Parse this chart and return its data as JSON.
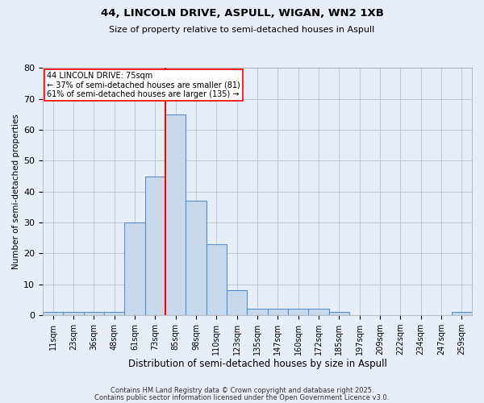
{
  "title1": "44, LINCOLN DRIVE, ASPULL, WIGAN, WN2 1XB",
  "title2": "Size of property relative to semi-detached houses in Aspull",
  "xlabel": "Distribution of semi-detached houses by size in Aspull",
  "ylabel": "Number of semi-detached properties",
  "bar_labels": [
    "11sqm",
    "23sqm",
    "36sqm",
    "48sqm",
    "61sqm",
    "73sqm",
    "85sqm",
    "98sqm",
    "110sqm",
    "123sqm",
    "135sqm",
    "147sqm",
    "160sqm",
    "172sqm",
    "185sqm",
    "197sqm",
    "209sqm",
    "222sqm",
    "234sqm",
    "247sqm",
    "259sqm"
  ],
  "bar_values": [
    1,
    1,
    1,
    1,
    30,
    45,
    65,
    37,
    23,
    8,
    2,
    2,
    2,
    2,
    1,
    0,
    0,
    0,
    0,
    0,
    1
  ],
  "bar_color": "#c9d9ec",
  "bar_edge_color": "#5b8fc9",
  "grid_color": "#c0c8d8",
  "background_color": "#e8eef8",
  "vline_idx": 6,
  "vline_color": "red",
  "annotation_title": "44 LINCOLN DRIVE: 75sqm",
  "annotation_line1": "← 37% of semi-detached houses are smaller (81)",
  "annotation_line2": "61% of semi-detached houses are larger (135) →",
  "annotation_box_color": "white",
  "annotation_box_edge": "red",
  "ylim": [
    0,
    80
  ],
  "yticks": [
    0,
    10,
    20,
    30,
    40,
    50,
    60,
    70,
    80
  ],
  "footer1": "Contains HM Land Registry data © Crown copyright and database right 2025.",
  "footer2": "Contains public sector information licensed under the Open Government Licence v3.0."
}
